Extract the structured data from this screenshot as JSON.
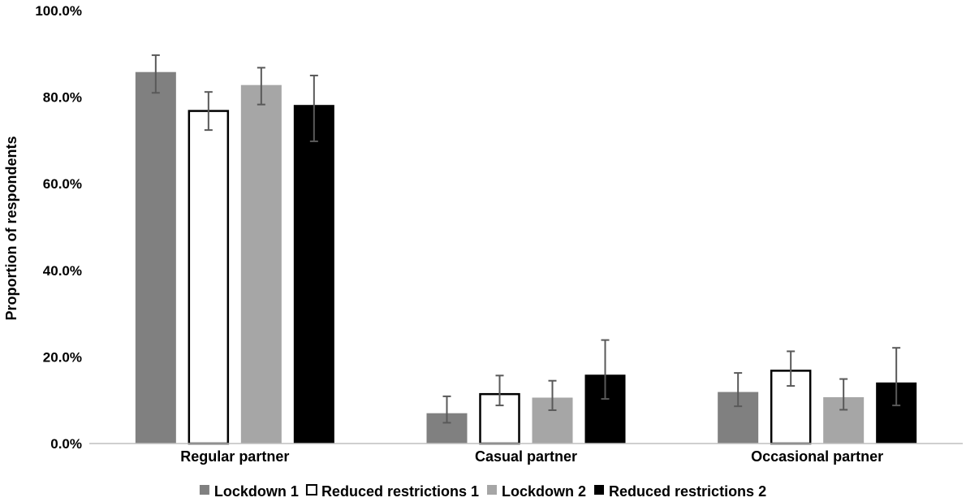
{
  "chart_data": {
    "type": "bar",
    "title": "",
    "xlabel": "",
    "ylabel": "Proportion of respondents",
    "ylim": [
      0,
      100
    ],
    "y_ticks": [
      "0.0%",
      "20.0%",
      "40.0%",
      "60.0%",
      "80.0%",
      "100.0%"
    ],
    "y_tick_values": [
      0,
      20,
      40,
      60,
      80,
      100
    ],
    "categories": [
      "Regular partner",
      "Casual partner",
      "Occasional partner"
    ],
    "grid": false,
    "legend_position": "bottom",
    "series": [
      {
        "name": "Lockdown 1",
        "color": "#808080",
        "stroke": "#808080",
        "values": [
          85.8,
          7.0,
          11.9
        ],
        "error_low": [
          81.0,
          4.8,
          8.6
        ],
        "error_high": [
          89.7,
          10.9,
          16.3
        ]
      },
      {
        "name": "Reduced restrictions 1",
        "color": "#ffffff",
        "stroke": "#000000",
        "values": [
          77.0,
          11.6,
          17.0
        ],
        "error_low": [
          72.4,
          8.8,
          13.3
        ],
        "error_high": [
          81.2,
          15.7,
          21.3
        ]
      },
      {
        "name": "Lockdown 2",
        "color": "#a6a6a6",
        "stroke": "#a6a6a6",
        "values": [
          82.8,
          10.6,
          10.7
        ],
        "error_low": [
          78.3,
          7.7,
          7.8
        ],
        "error_high": [
          86.8,
          14.5,
          14.9
        ]
      },
      {
        "name": "Reduced restrictions 2",
        "color": "#000000",
        "stroke": "#000000",
        "values": [
          78.2,
          15.9,
          14.1
        ],
        "error_low": [
          69.8,
          10.3,
          8.8
        ],
        "error_high": [
          85.0,
          23.9,
          22.1
        ]
      }
    ],
    "error_bar_color": "#595959"
  }
}
